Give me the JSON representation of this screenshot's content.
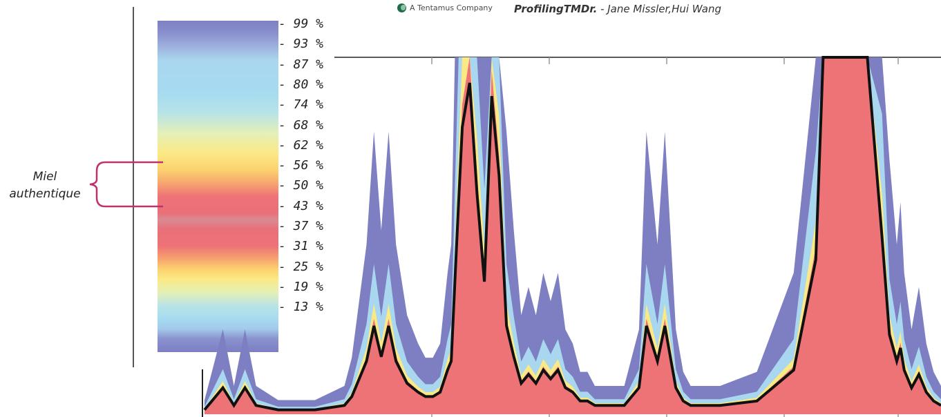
{
  "header": {
    "brand_text": "A Tentamus Company",
    "brand_icon": "tentamus-leaf-icon",
    "citation_bold": "ProfilingTMDr.",
    "citation_rest": " - Jane Missler,Hui Wang"
  },
  "annotation": {
    "line1": "Miel",
    "line2": "authentique",
    "bracket_color": "#c0306e"
  },
  "chart_data": {
    "type": "area",
    "title": "",
    "xlabel": "",
    "ylabel": "",
    "grid": false,
    "colorbar": {
      "labels": [
        "99 %",
        "93 %",
        "87 %",
        "80 %",
        "74 %",
        "68 %",
        "62 %",
        "56 %",
        "50 %",
        "43 %",
        "37 %",
        "31 %",
        "25 %",
        "19 %",
        "13 %"
      ],
      "colors": [
        "#7d7fc2",
        "#a9d7ef",
        "#fbe985",
        "#ee7377"
      ]
    },
    "x": [
      0,
      0.01,
      0.025,
      0.04,
      0.055,
      0.07,
      0.1,
      0.15,
      0.19,
      0.2,
      0.22,
      0.23,
      0.24,
      0.25,
      0.26,
      0.275,
      0.29,
      0.3,
      0.31,
      0.32,
      0.33,
      0.335,
      0.34,
      0.345,
      0.35,
      0.36,
      0.37,
      0.38,
      0.39,
      0.4,
      0.41,
      0.42,
      0.43,
      0.44,
      0.45,
      0.46,
      0.47,
      0.48,
      0.49,
      0.5,
      0.51,
      0.52,
      0.53,
      0.55,
      0.57,
      0.59,
      0.6,
      0.615,
      0.625,
      0.64,
      0.65,
      0.66,
      0.7,
      0.75,
      0.8,
      0.83,
      0.84,
      0.845,
      0.85,
      0.86,
      0.88,
      0.89,
      0.9,
      0.92,
      0.93,
      0.94,
      0.945,
      0.95,
      0.96,
      0.97,
      0.98,
      0.99,
      1.0
    ],
    "series": [
      {
        "name": "",
        "values": [
          0.01,
          0.03,
          0.06,
          0.02,
          0.06,
          0.02,
          0.01,
          0.01,
          0.02,
          0.04,
          0.12,
          0.2,
          0.13,
          0.2,
          0.12,
          0.07,
          0.05,
          0.04,
          0.04,
          0.05,
          0.1,
          0.12,
          0.3,
          0.48,
          0.65,
          0.75,
          0.5,
          0.3,
          0.72,
          0.54,
          0.2,
          0.13,
          0.07,
          0.09,
          0.07,
          0.1,
          0.08,
          0.1,
          0.06,
          0.05,
          0.03,
          0.03,
          0.02,
          0.02,
          0.02,
          0.06,
          0.2,
          0.12,
          0.2,
          0.06,
          0.03,
          0.02,
          0.02,
          0.03,
          0.1,
          0.35,
          0.9,
          1.3,
          1.3,
          1.3,
          1.3,
          1.3,
          0.95,
          0.4,
          0.18,
          0.12,
          0.15,
          0.1,
          0.06,
          0.09,
          0.05,
          0.03,
          0.02
        ]
      }
    ]
  }
}
